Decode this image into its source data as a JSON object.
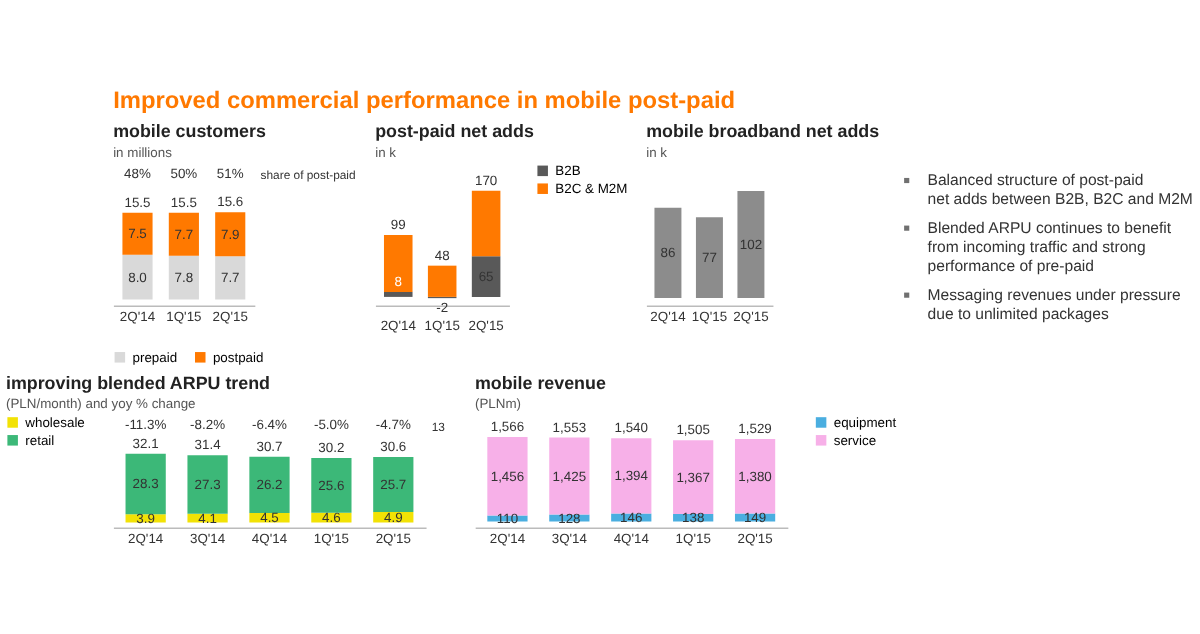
{
  "chart_data": [
    {
      "type": "other",
      "title": "Improved commercial performance in mobile post-paid"
    },
    {
      "type": "bar",
      "title": "mobile customers",
      "subtitle": "in millions",
      "categories": [
        "2Q'14",
        "1Q'15",
        "2Q'15"
      ],
      "stacked": true,
      "legend": "bottom",
      "series": [
        {
          "name": "prepaid",
          "color": "#d9d9d9",
          "values": [
            8.0,
            7.8,
            7.7
          ],
          "value_labels": [
            "8.0",
            "7.8",
            "7.7"
          ]
        },
        {
          "name": "postpaid",
          "color": "#ff7900",
          "values": [
            7.5,
            7.7,
            7.9
          ],
          "value_labels": [
            "7.5",
            "7.7",
            "7.9"
          ]
        }
      ],
      "totals": [
        "15.5",
        "15.5",
        "15.6"
      ],
      "annotations": [
        "48%",
        "50%",
        "51%",
        "share of post-paid"
      ]
    },
    {
      "type": "bar",
      "title": "post-paid net adds",
      "subtitle": "in k",
      "categories": [
        "2Q'14",
        "1Q'15",
        "2Q'15"
      ],
      "stacked": true,
      "legend": "right",
      "series": [
        {
          "name": "B2B",
          "color": "#595959",
          "values": [
            8,
            -2,
            65
          ],
          "value_labels": [
            "8",
            "-2",
            "65"
          ]
        },
        {
          "name": "B2C & M2M",
          "color": "#ff7900",
          "values": [
            91,
            50,
            105
          ]
        }
      ],
      "totals": [
        "99",
        "48",
        "170"
      ]
    },
    {
      "type": "bar",
      "title": "mobile broadband net adds",
      "subtitle": "in k",
      "categories": [
        "2Q'14",
        "1Q'15",
        "2Q'15"
      ],
      "data_labels": true,
      "color": "#8c8c8c",
      "values": [
        86,
        77,
        102
      ]
    },
    {
      "type": "other",
      "annotations": [
        "Balanced structure of post-paid net adds between B2B, B2C and M2M",
        "Blended ARPU continues to benefit from incoming traffic and strong performance of pre-paid",
        "Messaging revenues under pressure due to unlimited packages"
      ]
    },
    {
      "type": "bar",
      "title": "improving blended ARPU trend",
      "subtitle": "(PLN/month) and yoy % change",
      "categories": [
        "2Q'14",
        "3Q'14",
        "4Q'14",
        "1Q'15",
        "2Q'15"
      ],
      "stacked": true,
      "data_labels": true,
      "legend": "left",
      "series": [
        {
          "name": "wholesale",
          "color": "#f2e205",
          "values": [
            3.9,
            4.1,
            4.5,
            4.6,
            4.9
          ]
        },
        {
          "name": "retail",
          "color": "#3cb878",
          "values": [
            28.3,
            27.3,
            26.2,
            25.6,
            25.7
          ]
        }
      ],
      "totals": [
        "32.1",
        "31.4",
        "30.7",
        "30.2",
        "30.6"
      ],
      "annotations": [
        "-11.3%",
        "-8.2%",
        "-6.4%",
        "-5.0%",
        "-4.7%",
        "13"
      ]
    },
    {
      "type": "bar",
      "title": "mobile revenue",
      "subtitle": "(PLNm)",
      "categories": [
        "2Q'14",
        "3Q'14",
        "4Q'14",
        "1Q'15",
        "2Q'15"
      ],
      "stacked": true,
      "legend": "right",
      "series": [
        {
          "name": "equipment",
          "color": "#4aaee0",
          "values": [
            110,
            128,
            146,
            138,
            149
          ],
          "value_labels": [
            "110",
            "128",
            "146",
            "138",
            "149"
          ]
        },
        {
          "name": "service",
          "color": "#f7b0e8",
          "values": [
            1456,
            1425,
            1394,
            1367,
            1380
          ],
          "value_labels": [
            "1,456",
            "1,425",
            "1,394",
            "1,367",
            "1,380"
          ]
        }
      ],
      "totals": [
        "1,566",
        "1,553",
        "1,540",
        "1,505",
        "1,529"
      ]
    }
  ]
}
